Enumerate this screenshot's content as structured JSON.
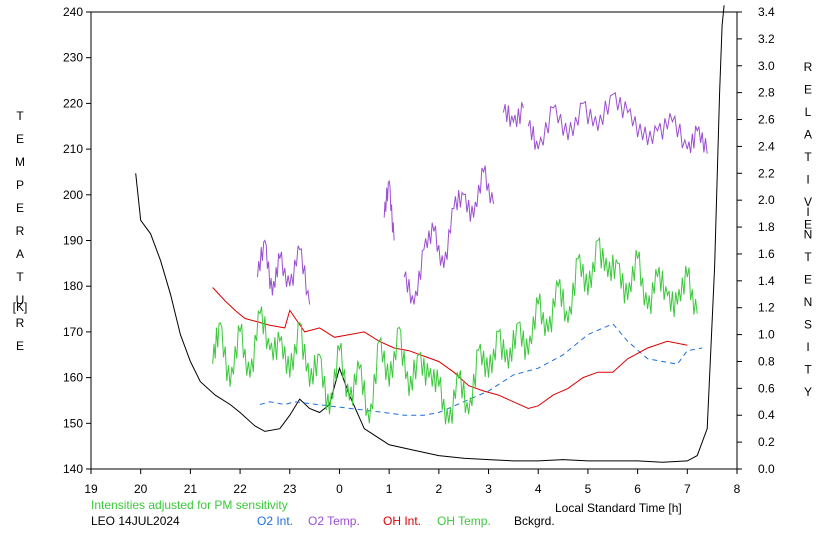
{
  "chart_data": {
    "type": "line",
    "xlabel": "Local Standard Time [h]",
    "ylabel_left": "TEMPERATURE [K]",
    "ylabel_right": "RELATIVE INTENSITY",
    "x_ticks": [
      "19",
      "20",
      "21",
      "22",
      "23",
      "0",
      "1",
      "2",
      "3",
      "4",
      "5",
      "6",
      "7",
      "8"
    ],
    "left_ticks": [
      140,
      150,
      160,
      170,
      180,
      190,
      200,
      210,
      220,
      230,
      240
    ],
    "right_ticks": [
      "0.0",
      "0.2",
      "0.4",
      "0.6",
      "0.8",
      "1.0",
      "1.2",
      "1.4",
      "1.6",
      "1.8",
      "2.0",
      "2.2",
      "2.4",
      "2.6",
      "2.8",
      "3.0",
      "3.2",
      "3.4"
    ],
    "xlim": [
      19,
      8
    ],
    "ylim_left": [
      140,
      240
    ],
    "ylim_right": [
      0.0,
      3.4
    ],
    "grid": false,
    "note": "Intensities adjusted for PM sensitivity",
    "station_date": "LEO 14JUL2024",
    "legend": [
      {
        "label": "O2 Int.",
        "color": "#1e6fdc"
      },
      {
        "label": "O2 Temp.",
        "color": "#9b4fd1"
      },
      {
        "label": "OH Int.",
        "color": "#dd0000"
      },
      {
        "label": "OH Temp.",
        "color": "#3cc83c"
      },
      {
        "label": "Bckgrd.",
        "color": "#000000"
      }
    ],
    "series": [
      {
        "name": "Bckgrd.",
        "axis": "right",
        "color": "#000000",
        "style": "solid",
        "x": [
          19.9,
          20.0,
          20.2,
          20.4,
          20.6,
          20.8,
          21.0,
          21.2,
          21.5,
          21.8,
          22.0,
          22.3,
          22.5,
          22.8,
          23.0,
          23.2,
          23.4,
          23.6,
          23.8,
          24.0,
          24.2,
          24.5,
          25.0,
          25.5,
          26.0,
          26.5,
          27.0,
          27.5,
          28.0,
          28.5,
          29.0,
          29.5,
          30.0,
          30.5,
          31.0,
          31.2,
          31.4,
          31.55,
          31.65,
          31.7,
          31.74
        ],
        "y": [
          2.2,
          1.85,
          1.75,
          1.55,
          1.3,
          1.0,
          0.8,
          0.65,
          0.55,
          0.48,
          0.42,
          0.32,
          0.28,
          0.3,
          0.4,
          0.52,
          0.45,
          0.42,
          0.48,
          0.75,
          0.55,
          0.3,
          0.18,
          0.14,
          0.1,
          0.08,
          0.07,
          0.06,
          0.06,
          0.07,
          0.06,
          0.06,
          0.06,
          0.05,
          0.06,
          0.1,
          0.3,
          1.5,
          2.8,
          3.3,
          3.45
        ]
      },
      {
        "name": "O2 Int.",
        "axis": "right",
        "color": "#1e6fdc",
        "style": "dashed",
        "x": [
          22.4,
          22.6,
          22.9,
          23.1,
          24.9,
          25.3,
          25.7,
          26.0,
          26.5,
          27.0,
          27.5,
          28.0,
          28.5,
          29.0,
          29.5,
          29.8,
          30.2,
          30.5,
          30.8,
          31.0,
          31.3
        ],
        "y": [
          0.48,
          0.5,
          0.48,
          0.5,
          0.42,
          0.4,
          0.4,
          0.42,
          0.5,
          0.58,
          0.7,
          0.75,
          0.85,
          1.0,
          1.08,
          0.95,
          0.82,
          0.8,
          0.78,
          0.88,
          0.9
        ]
      },
      {
        "name": "O2 Temp.",
        "axis": "left",
        "color": "#9b4fd1",
        "style": "scribble",
        "segments": [
          {
            "x": [
              22.35,
              22.5,
              22.65,
              22.8,
              23.0,
              23.2,
              23.4
            ],
            "y": [
              182,
              190,
              178,
              186,
              180,
              188,
              176
            ]
          },
          {
            "x": [
              24.9,
              25.0,
              25.1
            ],
            "y": [
              195,
              203,
              190
            ]
          },
          {
            "x": [
              25.3,
              25.5,
              25.7,
              25.9,
              26.1,
              26.3,
              26.5,
              26.7,
              26.9,
              27.1
            ],
            "y": [
              182,
              176,
              188,
              192,
              184,
              197,
              200,
              195,
              205,
              198
            ]
          },
          {
            "x": [
              27.3,
              27.5,
              27.7
            ],
            "y": [
              218,
              216,
              219
            ]
          },
          {
            "x": [
              27.8,
              28.0,
              28.3,
              28.6,
              28.9,
              29.2,
              29.5,
              29.8,
              30.1,
              30.4,
              30.7,
              31.0,
              31.2,
              31.4
            ],
            "y": [
              215,
              210,
              219,
              212,
              220,
              214,
              222,
              218,
              212,
              214,
              216,
              210,
              214,
              209
            ]
          }
        ]
      },
      {
        "name": "OH Int.",
        "axis": "right",
        "color": "#dd0000",
        "style": "solid",
        "x": [
          21.45,
          21.7,
          21.9,
          22.1,
          22.3,
          22.6,
          22.9,
          23.0,
          23.3,
          23.6,
          23.9,
          24.2,
          24.5,
          24.8,
          25.1,
          25.4,
          25.7,
          26.0,
          26.3,
          26.6,
          26.9,
          27.2,
          27.5,
          27.8,
          28.0,
          28.3,
          28.6,
          28.9,
          29.2,
          29.5,
          29.8,
          30.2,
          30.6,
          31.0
        ],
        "y": [
          1.35,
          1.25,
          1.18,
          1.12,
          1.1,
          1.07,
          1.05,
          1.18,
          1.02,
          1.05,
          0.98,
          1.0,
          1.02,
          0.95,
          0.9,
          0.88,
          0.84,
          0.8,
          0.72,
          0.62,
          0.58,
          0.55,
          0.5,
          0.45,
          0.47,
          0.55,
          0.6,
          0.68,
          0.72,
          0.72,
          0.82,
          0.9,
          0.95,
          0.92
        ]
      },
      {
        "name": "OH Temp.",
        "axis": "left",
        "color": "#3cc83c",
        "style": "scribble",
        "x": [
          21.45,
          21.6,
          21.8,
          22.0,
          22.2,
          22.4,
          22.6,
          22.8,
          23.0,
          23.2,
          23.4,
          23.6,
          23.8,
          24.0,
          24.2,
          24.4,
          24.6,
          24.8,
          25.0,
          25.2,
          25.4,
          25.6,
          25.8,
          26.0,
          26.2,
          26.4,
          26.6,
          26.8,
          27.0,
          27.2,
          27.4,
          27.6,
          27.8,
          28.0,
          28.2,
          28.4,
          28.6,
          28.8,
          29.0,
          29.2,
          29.4,
          29.6,
          29.8,
          30.0,
          30.2,
          30.4,
          30.6,
          30.8,
          31.0,
          31.2
        ],
        "y": [
          163,
          172,
          158,
          170,
          160,
          174,
          166,
          168,
          160,
          172,
          158,
          165,
          152,
          166,
          155,
          162,
          150,
          168,
          158,
          171,
          156,
          165,
          160,
          158,
          150,
          160,
          152,
          166,
          160,
          170,
          162,
          172,
          165,
          176,
          170,
          180,
          172,
          186,
          178,
          190,
          182,
          185,
          177,
          186,
          175,
          182,
          178,
          176,
          182,
          174
        ]
      }
    ]
  }
}
